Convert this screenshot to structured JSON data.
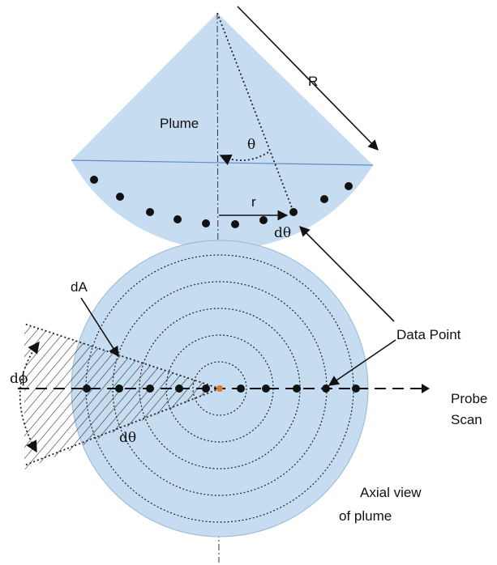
{
  "labels": {
    "R": "R",
    "plume": "Plume",
    "theta": "θ",
    "r": "r",
    "dtheta_top": "dθ",
    "dA": "dA",
    "data_point": "Data Point",
    "dphi": "dϕ",
    "dtheta_bottom": "dθ",
    "probe_scan_line1": "Probe",
    "probe_scan_line2": "Scan",
    "axial_line1": "Axial view",
    "axial_line2": "of plume"
  },
  "colors": {
    "plume_fill": "#c6dcf0",
    "plume_edge": "#5b8fc7",
    "data_point": "#111111",
    "center_point": "#e07a1f"
  },
  "diagram": {
    "arc_points_count": 11,
    "scan_points_count": 11
  }
}
